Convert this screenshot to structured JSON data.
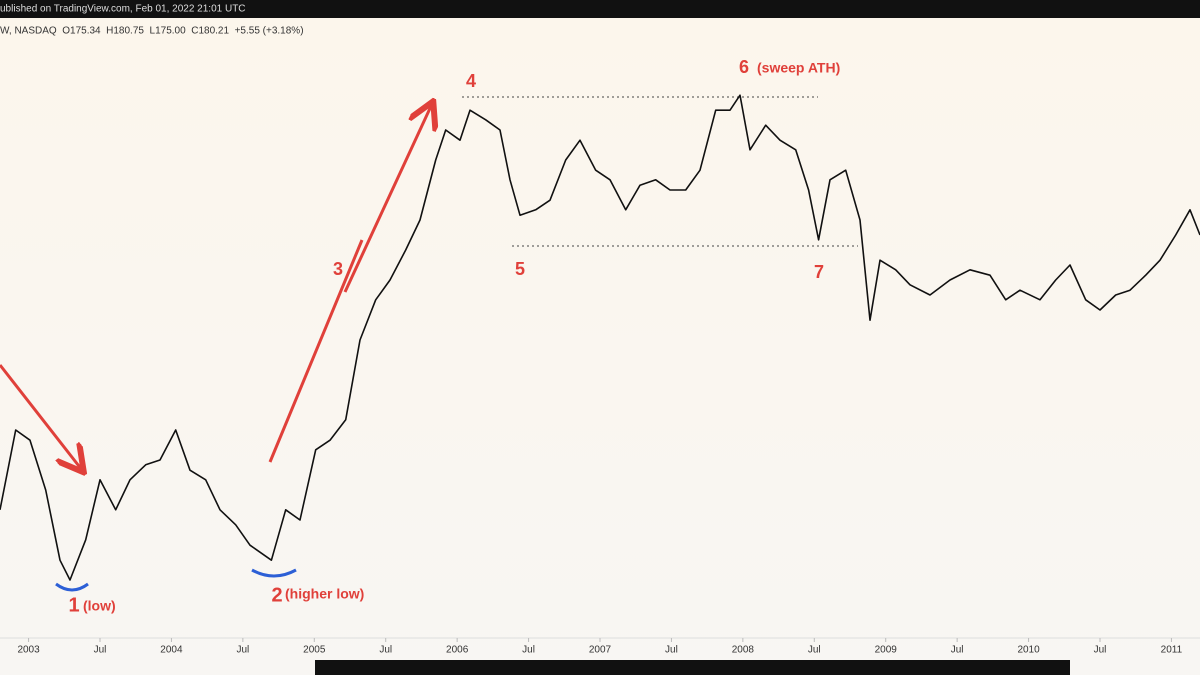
{
  "header": {
    "publisher": "ublished on TradingView.com, Feb 01, 2022 21:01 UTC",
    "symbol": "W, NASDAQ  O175.34  H180.75  L175.00  C180.21  +5.55 (+3.18%)"
  },
  "chart_data": {
    "type": "line",
    "x": [
      2002.8,
      2002.91,
      2003.01,
      2003.12,
      2003.22,
      2003.29,
      2003.4,
      2003.5,
      2003.61,
      2003.71,
      2003.82,
      2003.92,
      2004.03,
      2004.13,
      2004.24,
      2004.34,
      2004.45,
      2004.55,
      2004.7,
      2004.8,
      2004.9,
      2005.01,
      2005.11,
      2005.22,
      2005.32,
      2005.43,
      2005.53,
      2005.64,
      2005.74,
      2005.85,
      2005.92,
      2006.02,
      2006.09,
      2006.2,
      2006.3,
      2006.37,
      2006.44,
      2006.55,
      2006.65,
      2006.76,
      2006.86,
      2006.97,
      2007.07,
      2007.18,
      2007.28,
      2007.39,
      2007.49,
      2007.6,
      2007.7,
      2007.81,
      2007.91,
      2007.98,
      2008.05,
      2008.16,
      2008.26,
      2008.37,
      2008.46,
      2008.53,
      2008.61,
      2008.72,
      2008.82,
      2008.89,
      2008.96,
      2009.07,
      2009.17,
      2009.31,
      2009.45,
      2009.59,
      2009.73,
      2009.84,
      2009.94,
      2010.08,
      2010.19,
      2010.29,
      2010.4,
      2010.5,
      2010.61,
      2010.71,
      2010.82,
      2010.92,
      2011.03,
      2011.13,
      2011.2
    ],
    "values": [
      21.7,
      35,
      33.3,
      25,
      13.3,
      10,
      16.7,
      26.7,
      21.7,
      26.7,
      29.2,
      30,
      35,
      28.3,
      26.7,
      21.7,
      19.2,
      15.8,
      13.3,
      21.7,
      20,
      31.7,
      33.3,
      36.7,
      50,
      56.7,
      60,
      65,
      70,
      80,
      85,
      83.3,
      88.3,
      86.7,
      85,
      76.7,
      70.8,
      71.7,
      73.3,
      80,
      83.3,
      78.3,
      76.7,
      71.7,
      75.8,
      76.7,
      75,
      75,
      78.3,
      88.3,
      88.3,
      90.8,
      81.7,
      85.8,
      83.3,
      81.7,
      75,
      66.7,
      76.7,
      78.3,
      70,
      53.3,
      63.3,
      61.7,
      59.2,
      57.5,
      60,
      61.7,
      60.8,
      56.7,
      58.3,
      56.7,
      60,
      62.5,
      56.7,
      55,
      57.5,
      58.3,
      60.8,
      63.3,
      67.5,
      71.7,
      67.5
    ],
    "color": "#111111",
    "xlim": [
      2002.8,
      2011.2
    ],
    "ylim": [
      0,
      100
    ],
    "xticks": [
      2003,
      {
        "value": 2003.5,
        "label": "Jul"
      },
      2004,
      {
        "value": 2004.5,
        "label": "Jul"
      },
      2005,
      {
        "value": 2005.5,
        "label": "Jul"
      },
      2006,
      {
        "value": 2006.5,
        "label": "Jul"
      },
      2007,
      {
        "value": 2007.5,
        "label": "Jul"
      },
      2008,
      {
        "value": 2008.5,
        "label": "Jul"
      },
      2009,
      {
        "value": 2009.5,
        "label": "Jul"
      },
      2010,
      {
        "value": 2010.5,
        "label": "Jul"
      },
      2011
    ],
    "annotations": [
      "1",
      "(low)",
      "2",
      "(higher low)",
      "3",
      "4",
      "5",
      "6",
      "(sweep ATH)",
      "7"
    ]
  }
}
